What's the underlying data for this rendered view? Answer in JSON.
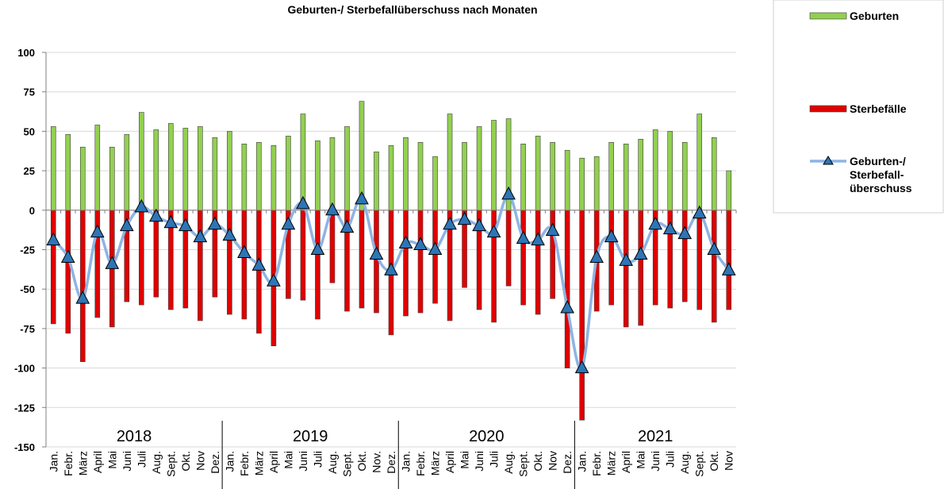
{
  "chart_data": {
    "type": "bar_line",
    "title": "Geburten-/ Sterbefallüberschuss nach Monaten",
    "categories": [
      "Jan.",
      "Febr.",
      "März",
      "April",
      "Mai",
      "Juni",
      "Juli",
      "Aug.",
      "Sept.",
      "Okt.",
      "Nov",
      "Dez.",
      "Jan.",
      "Febr.",
      "März",
      "April",
      "Mai",
      "Juni",
      "Juli",
      "Aug.",
      "Sept.",
      "Okt.",
      "Nov.",
      "Dez.",
      "Jan.",
      "Febr.",
      "März",
      "April",
      "Mai",
      "Juni",
      "Juli",
      "Aug.",
      "Sept.",
      "Okt.",
      "Nov",
      "Dez.",
      "Jan.",
      "Febr.",
      "März",
      "April",
      "Mai",
      "Juni",
      "Juli",
      "Aug.",
      "Sept.",
      "Okt.",
      "Nov"
    ],
    "years": [
      "2018",
      "2019",
      "2020",
      "2021"
    ],
    "series": [
      {
        "name": "Geburten",
        "type": "bar",
        "color": "#92d050",
        "values": [
          53,
          48,
          40,
          54,
          40,
          48,
          62,
          51,
          55,
          52,
          53,
          46,
          50,
          42,
          43,
          41,
          47,
          61,
          44,
          46,
          53,
          69,
          37,
          41,
          46,
          43,
          34,
          61,
          43,
          53,
          57,
          58,
          42,
          47,
          43,
          38,
          33,
          34,
          43,
          42,
          45,
          51,
          50,
          43,
          61,
          46,
          25
        ]
      },
      {
        "name": "Sterbefälle",
        "type": "bar",
        "color": "#e00000",
        "values": [
          -72,
          -78,
          -96,
          -68,
          -74,
          -58,
          -60,
          -55,
          -63,
          -62,
          -70,
          -55,
          -66,
          -69,
          -78,
          -86,
          -56,
          -57,
          -69,
          -46,
          -64,
          -62,
          -65,
          -79,
          -67,
          -65,
          -59,
          -70,
          -49,
          -63,
          -71,
          -48,
          -60,
          -66,
          -56,
          -100,
          -133,
          -64,
          -60,
          -74,
          -73,
          -60,
          -62,
          -58,
          -63,
          -71,
          -63
        ]
      },
      {
        "name": "Geburten-/ Sterbefall- überschuss",
        "type": "line",
        "color": "#8eb4e3",
        "marker_color": "#2e75b6",
        "values": [
          -19,
          -30,
          -56,
          -14,
          -34,
          -10,
          2,
          -4,
          -8,
          -10,
          -17,
          -9,
          -16,
          -27,
          -35,
          -45,
          -9,
          4,
          -25,
          0,
          -11,
          7,
          -28,
          -38,
          -21,
          -22,
          -25,
          -9,
          -6,
          -10,
          -14,
          10,
          -18,
          -19,
          -13,
          -62,
          -100,
          -30,
          -17,
          -32,
          -28,
          -9,
          -12,
          -15,
          -2,
          -25,
          -38
        ]
      }
    ],
    "ylim": [
      -150,
      100
    ],
    "yticks": [
      -150,
      -125,
      -100,
      -75,
      -50,
      -25,
      0,
      25,
      50,
      75,
      100
    ],
    "grid": true
  }
}
